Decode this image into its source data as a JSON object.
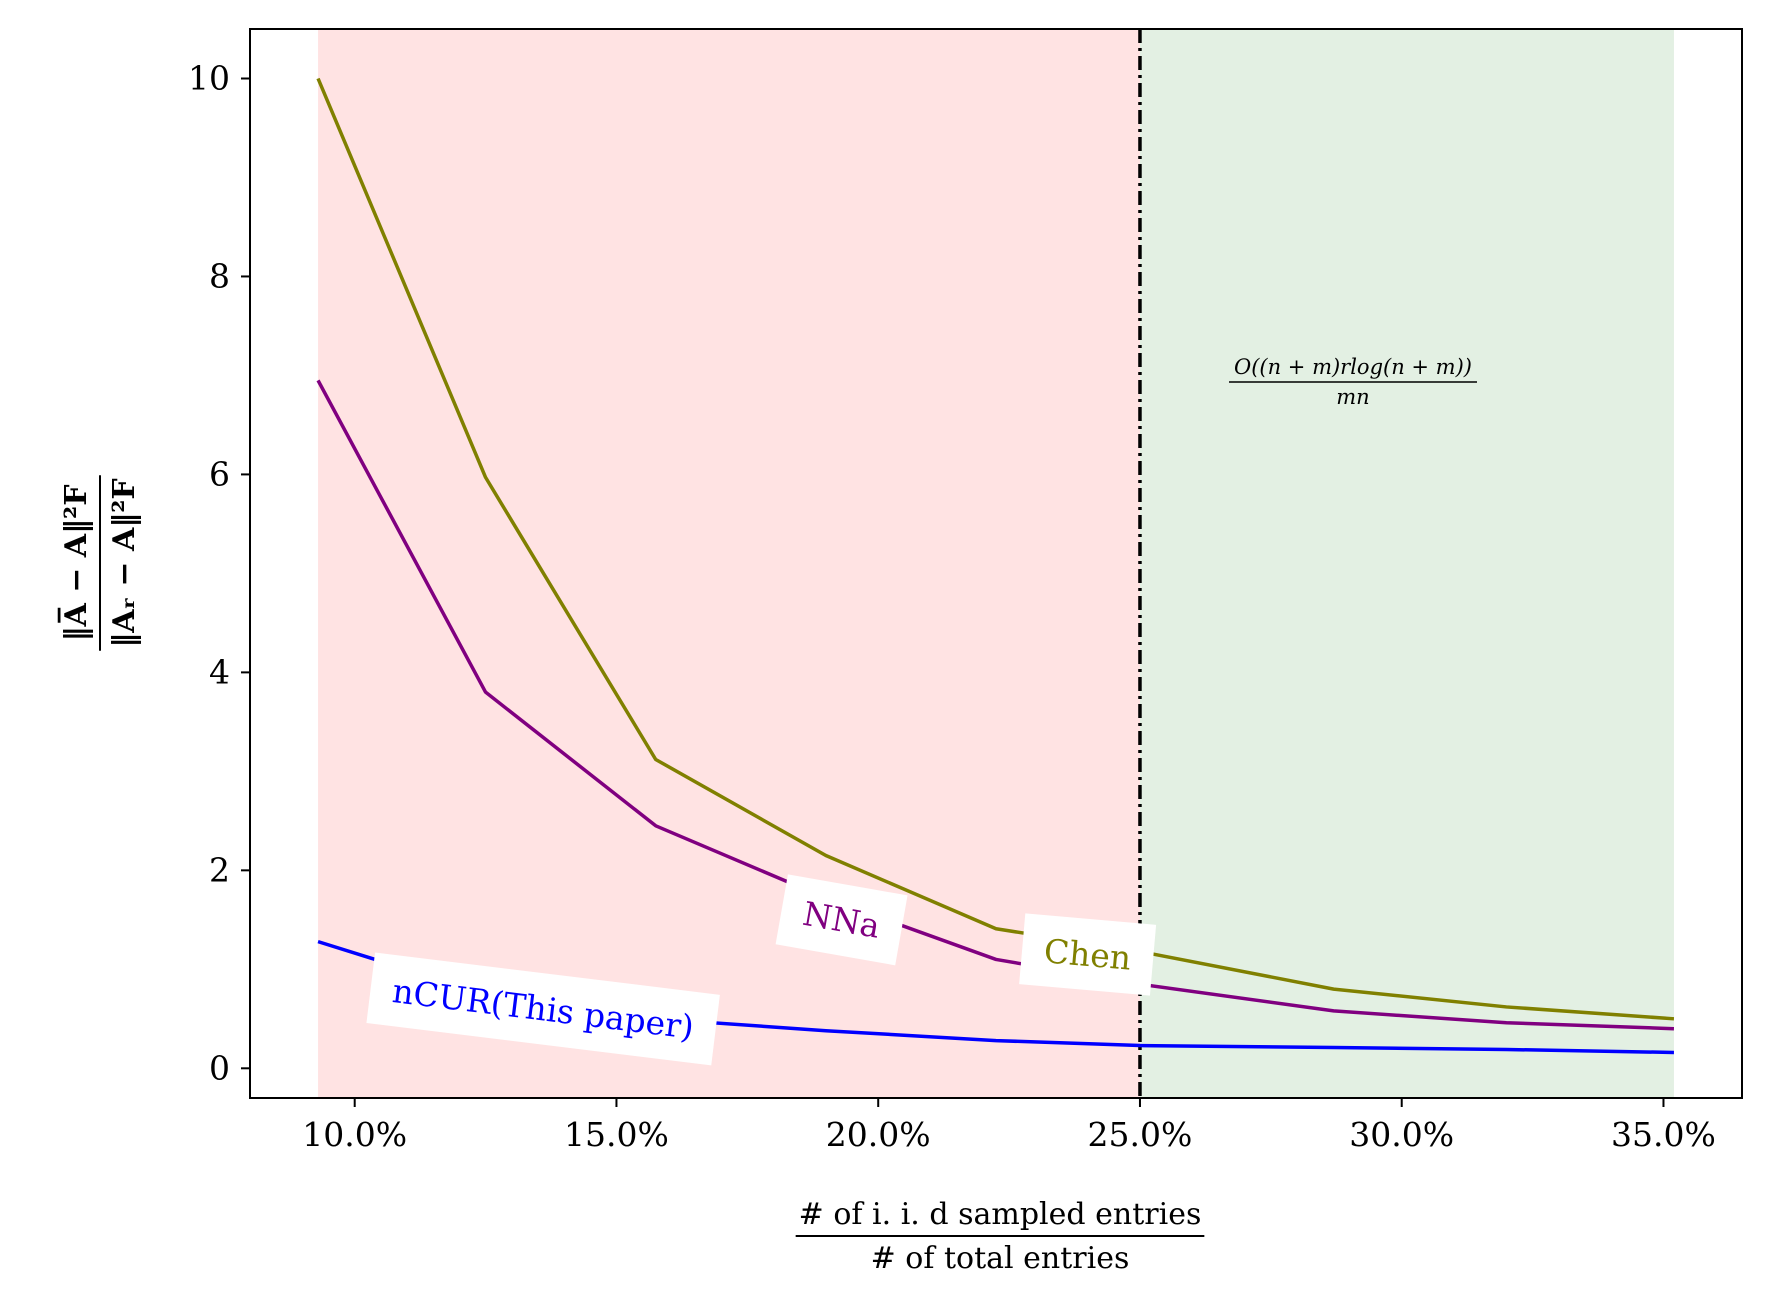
{
  "chart_data": {
    "type": "line",
    "x_unit": "%",
    "xlim": [
      8.0,
      36.5
    ],
    "ylim": [
      -0.3,
      10.5
    ],
    "x_ticks": [
      10,
      15,
      20,
      25,
      30,
      35
    ],
    "x_tick_labels": [
      "10.0%",
      "15.0%",
      "20.0%",
      "25.0%",
      "30.0%",
      "35.0%"
    ],
    "y_ticks": [
      0,
      2,
      4,
      6,
      8,
      10
    ],
    "y_tick_labels": [
      "0",
      "2",
      "4",
      "6",
      "8",
      "10"
    ],
    "xlabel": {
      "numerator": "# of i. i. d sampled entries",
      "denominator": "# of total entries"
    },
    "ylabel": {
      "numerator": "‖A̅ − A‖²F",
      "denominator": "‖Aᵣ − A‖²F"
    },
    "x": [
      9.3,
      12.5,
      15.75,
      19.0,
      22.25,
      25.0,
      28.7,
      32.0,
      35.2
    ],
    "series": [
      {
        "name": "Chen",
        "color": "#808000",
        "values": [
          10.0,
          5.97,
          3.12,
          2.15,
          1.41,
          1.18,
          0.8,
          0.62,
          0.5
        ]
      },
      {
        "name": "NNa",
        "color": "#800080",
        "values": [
          6.95,
          3.8,
          2.45,
          1.72,
          1.1,
          0.85,
          0.58,
          0.46,
          0.4
        ]
      },
      {
        "name": "nCUR(This paper)",
        "color": "#0000ff",
        "values": [
          1.28,
          0.75,
          0.5,
          0.38,
          0.28,
          0.23,
          0.21,
          0.19,
          0.16
        ]
      }
    ],
    "shaded_regions": [
      {
        "x_range": [
          9.3,
          25.0
        ],
        "color": "#ffe3e3"
      },
      {
        "x_range": [
          25.0,
          35.2
        ],
        "color": "#e3f0e3"
      }
    ],
    "threshold_line": {
      "x": 25.0,
      "style": "dash-dot",
      "color": "#000000"
    },
    "annotation": {
      "numerator": "O((n + m)rlog(n + m))",
      "denominator": "mn"
    },
    "grid": false,
    "legend": "inline labels on curves"
  }
}
